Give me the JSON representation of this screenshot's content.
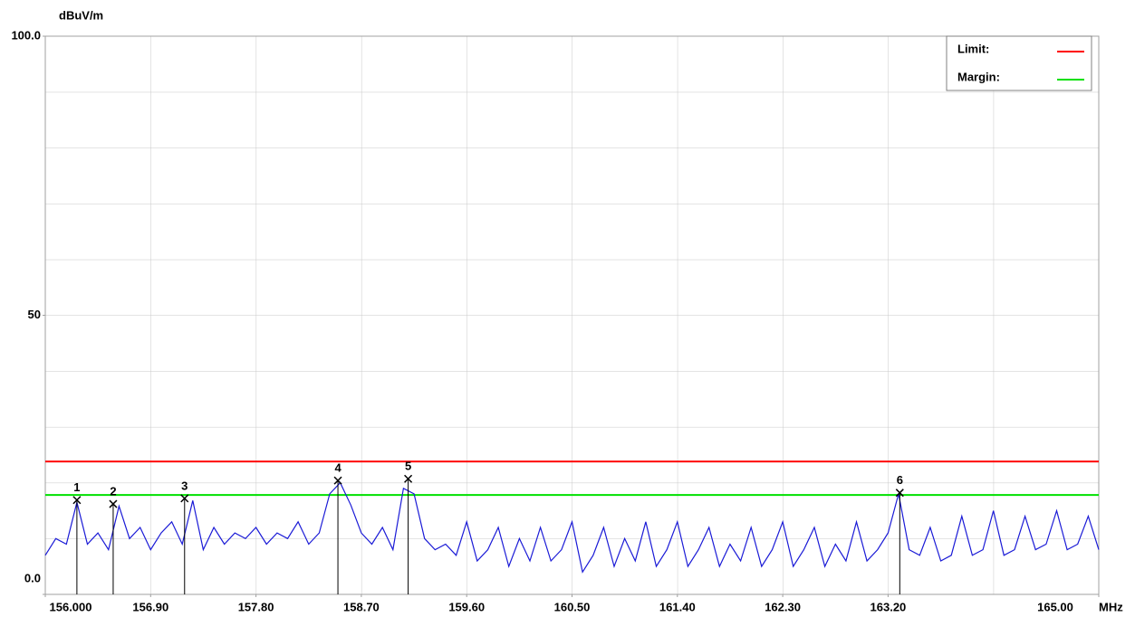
{
  "chart_data": {
    "type": "line",
    "y_unit": "dBuV/m",
    "x_unit": "MHz",
    "xlim": [
      156,
      165
    ],
    "ylim": [
      0,
      100
    ],
    "xticks": [
      {
        "value": 156,
        "label": "156.000"
      },
      {
        "value": 156.9,
        "label": "156.90"
      },
      {
        "value": 157.8,
        "label": "157.80"
      },
      {
        "value": 158.7,
        "label": "158.70"
      },
      {
        "value": 159.6,
        "label": "159.60"
      },
      {
        "value": 160.5,
        "label": "160.50"
      },
      {
        "value": 161.4,
        "label": "161.40"
      },
      {
        "value": 162.3,
        "label": "162.30"
      },
      {
        "value": 163.2,
        "label": "163.20"
      },
      {
        "value": 165,
        "label": "165.00"
      }
    ],
    "yticks": [
      {
        "value": 0,
        "label": "0.0"
      },
      50,
      {
        "value": 100,
        "label": "100.0"
      }
    ],
    "grid": true,
    "x": [
      156,
      156.09,
      156.18,
      156.27,
      156.36,
      156.45,
      156.54,
      156.63,
      156.72,
      156.81,
      156.9,
      156.99,
      157.08,
      157.17,
      157.26,
      157.35,
      157.44,
      157.53,
      157.62,
      157.71,
      157.8,
      157.89,
      157.98,
      158.07,
      158.16,
      158.25,
      158.34,
      158.43,
      158.52,
      158.61,
      158.7,
      158.79,
      158.88,
      158.97,
      159.06,
      159.15,
      159.24,
      159.33,
      159.42,
      159.51,
      159.6,
      159.69,
      159.78,
      159.87,
      159.96,
      160.05,
      160.14,
      160.23,
      160.32,
      160.41,
      160.5,
      160.59,
      160.68,
      160.77,
      160.86,
      160.95,
      161.04,
      161.13,
      161.22,
      161.31,
      161.4,
      161.49,
      161.58,
      161.67,
      161.76,
      161.85,
      161.94,
      162.03,
      162.12,
      162.21,
      162.3,
      162.39,
      162.48,
      162.57,
      162.66,
      162.75,
      162.84,
      162.93,
      163.02,
      163.11,
      163.2,
      163.29,
      163.38,
      163.47,
      163.56,
      163.65,
      163.74,
      163.83,
      163.92,
      164.01,
      164.1,
      164.19,
      164.28,
      164.37,
      164.46,
      164.55,
      164.64,
      164.73,
      164.82,
      164.91,
      165
    ],
    "series": [
      {
        "color": "#1a1ad6",
        "values": [
          7,
          10,
          9,
          16.5,
          9,
          11,
          8,
          15.8,
          10,
          12,
          8,
          11,
          13,
          9,
          16.8,
          8,
          12,
          9,
          11,
          10,
          12,
          9,
          11,
          10,
          13,
          9,
          11,
          18,
          20,
          16,
          11,
          9,
          12,
          8,
          19,
          18,
          10,
          8,
          9,
          7,
          13,
          6,
          8,
          12,
          5,
          10,
          6,
          12,
          6,
          8,
          13,
          4,
          7,
          12,
          5,
          10,
          6,
          13,
          5,
          8,
          13,
          5,
          8,
          12,
          5,
          9,
          6,
          12,
          5,
          8,
          13,
          5,
          8,
          12,
          5,
          9,
          6,
          13,
          6,
          8,
          11,
          18,
          8,
          7,
          12,
          6,
          7,
          14,
          7,
          8,
          15,
          7,
          8,
          14,
          8,
          9,
          15,
          8,
          9,
          14,
          8
        ]
      }
    ],
    "limits": [
      {
        "name": "Limit:",
        "color": "#ff0000",
        "value": 23.8
      },
      {
        "name": "Margin:",
        "color": "#00e000",
        "value": 17.8
      }
    ],
    "markers": {
      "labels": [
        "1",
        "2",
        "3",
        "4",
        "5",
        "6"
      ],
      "x": [
        156.27,
        156.58,
        157.19,
        158.5,
        159.1,
        163.3
      ],
      "values": [
        16.9,
        16.2,
        17.2,
        20.4,
        20.7,
        18.2
      ]
    }
  }
}
